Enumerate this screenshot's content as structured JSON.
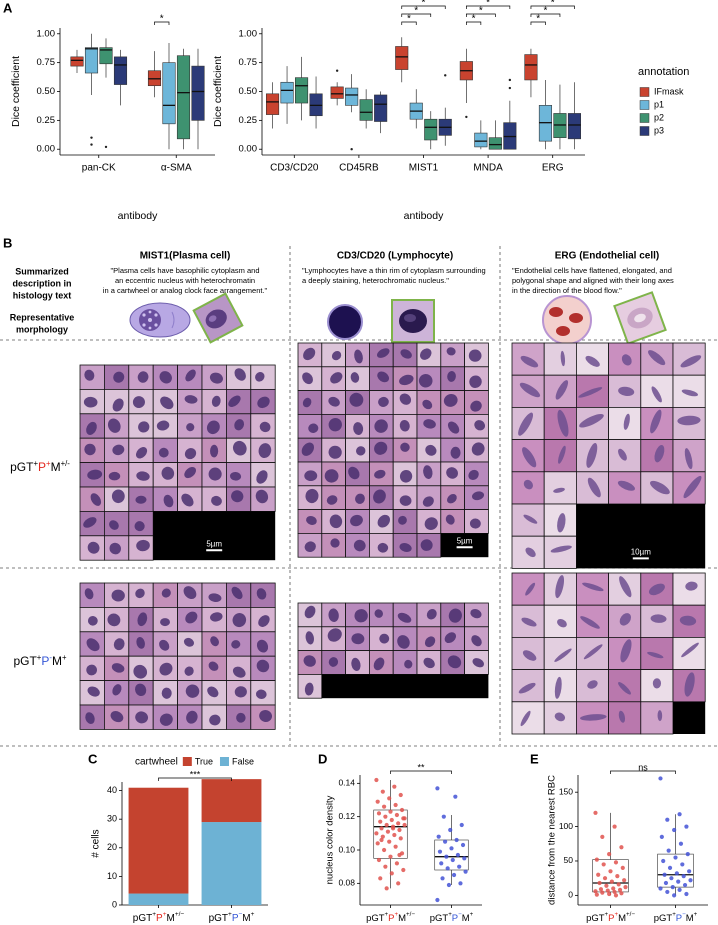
{
  "panel_labels": [
    "A",
    "B",
    "C",
    "D",
    "E"
  ],
  "chart_data": [
    {
      "type": "box",
      "y_label": "Dice coefficient",
      "x_label": "antibody",
      "categories": [
        "pan-CK",
        "α-SMA"
      ],
      "ylim": [
        -0.05,
        1.05
      ],
      "yticks": [
        {
          "value": 0,
          "label": "0.00"
        },
        0.25,
        {
          "value": 0.5,
          "label": "0.50"
        },
        0.75,
        {
          "value": 1,
          "label": "1.00"
        }
      ],
      "series": [
        {
          "name": "IFmask",
          "color": "#c9432f",
          "values": [
            {
              "lo": 0.66,
              "q1": 0.72,
              "med": 0.77,
              "q3": 0.8,
              "hi": 0.86
            },
            {
              "lo": 0.45,
              "q1": 0.55,
              "med": 0.61,
              "q3": 0.68,
              "hi": 0.85
            }
          ]
        },
        {
          "name": "p1",
          "color": "#6db6d9",
          "values": [
            {
              "lo": 0.47,
              "q1": 0.66,
              "med": 0.87,
              "q3": 0.88,
              "hi": 1,
              "out": [
                0.1,
                0.04
              ]
            },
            {
              "lo": 0,
              "q1": 0.22,
              "med": 0.38,
              "q3": 0.75,
              "hi": 0.92
            }
          ]
        },
        {
          "name": "p2",
          "color": "#3e9270",
          "values": [
            {
              "lo": 0.62,
              "q1": 0.74,
              "med": 0.86,
              "q3": 0.88,
              "hi": 0.96,
              "out": [
                0.02
              ]
            },
            {
              "lo": 0,
              "q1": 0.09,
              "med": 0.49,
              "q3": 0.81,
              "hi": 0.87
            }
          ]
        },
        {
          "name": "p3",
          "color": "#2b3a78",
          "values": [
            {
              "lo": 0.38,
              "q1": 0.56,
              "med": 0.73,
              "q3": 0.8,
              "hi": 0.86
            },
            {
              "lo": 0,
              "q1": 0.25,
              "med": 0.5,
              "q3": 0.72,
              "hi": 0.87
            }
          ]
        }
      ],
      "comparisons": [
        {
          "category": "α-SMA",
          "groups": [
            "IFmask",
            "p1"
          ],
          "label": "*"
        }
      ]
    },
    {
      "type": "box",
      "y_label": "Dice coefficient",
      "x_label": "antibody",
      "legend_title": "annotation",
      "categories": [
        "CD3/CD20",
        "CD45RB",
        "MIST1",
        "MNDA",
        "ERG"
      ],
      "ylim": [
        -0.05,
        1.05
      ],
      "yticks": [
        {
          "value": 0,
          "label": "0.00"
        },
        0.25,
        {
          "value": 0.5,
          "label": "0.50"
        },
        0.75,
        {
          "value": 1,
          "label": "1.00"
        }
      ],
      "series": [
        {
          "name": "IFmask",
          "color": "#c9432f",
          "values": [
            {
              "lo": 0.18,
              "q1": 0.3,
              "med": 0.41,
              "q3": 0.48,
              "hi": 0.58
            },
            {
              "lo": 0.38,
              "q1": 0.44,
              "med": 0.48,
              "q3": 0.54,
              "hi": 0.58,
              "out": [
                0.68
              ]
            },
            {
              "lo": 0.58,
              "q1": 0.69,
              "med": 0.8,
              "q3": 0.89,
              "hi": 0.97
            },
            {
              "lo": 0.4,
              "q1": 0.6,
              "med": 0.68,
              "q3": 0.76,
              "hi": 0.87,
              "out": [
                0.28
              ]
            },
            {
              "lo": 0.45,
              "q1": 0.6,
              "med": 0.73,
              "q3": 0.82,
              "hi": 0.87
            }
          ]
        },
        {
          "name": "p1",
          "color": "#6db6d9",
          "values": [
            {
              "lo": 0.22,
              "q1": 0.4,
              "med": 0.51,
              "q3": 0.58,
              "hi": 0.72
            },
            {
              "lo": 0.32,
              "q1": 0.38,
              "med": 0.47,
              "q3": 0.53,
              "hi": 0.65,
              "out": [
                0
              ]
            },
            {
              "lo": 0.18,
              "q1": 0.26,
              "med": 0.33,
              "q3": 0.4,
              "hi": 0.52
            },
            {
              "lo": 0,
              "q1": 0.02,
              "med": 0.07,
              "q3": 0.14,
              "hi": 0.25
            },
            {
              "lo": 0,
              "q1": 0.07,
              "med": 0.23,
              "q3": 0.38,
              "hi": 0.6
            }
          ]
        },
        {
          "name": "p2",
          "color": "#3e9270",
          "values": [
            {
              "lo": 0.25,
              "q1": 0.4,
              "med": 0.55,
              "q3": 0.62,
              "hi": 0.8
            },
            {
              "lo": 0.18,
              "q1": 0.25,
              "med": 0.32,
              "q3": 0.43,
              "hi": 0.52
            },
            {
              "lo": 0,
              "q1": 0.08,
              "med": 0.19,
              "q3": 0.26,
              "hi": 0.33
            },
            {
              "lo": 0,
              "q1": 0,
              "med": 0.04,
              "q3": 0.1,
              "hi": 0.25
            },
            {
              "lo": 0,
              "q1": 0.1,
              "med": 0.21,
              "q3": 0.31,
              "hi": 0.56
            }
          ]
        },
        {
          "name": "p3",
          "color": "#2b3a78",
          "values": [
            {
              "lo": 0.18,
              "q1": 0.29,
              "med": 0.38,
              "q3": 0.48,
              "hi": 0.63
            },
            {
              "lo": 0.14,
              "q1": 0.24,
              "med": 0.39,
              "q3": 0.47,
              "hi": 0.5
            },
            {
              "lo": 0.03,
              "q1": 0.12,
              "med": 0.19,
              "q3": 0.26,
              "hi": 0.36,
              "out": [
                0.64
              ]
            },
            {
              "lo": 0,
              "q1": 0,
              "med": 0.11,
              "q3": 0.23,
              "hi": 0.42,
              "out": [
                0.53,
                0.6
              ]
            },
            {
              "lo": 0,
              "q1": 0.09,
              "med": 0.21,
              "q3": 0.31,
              "hi": 0.58
            }
          ]
        }
      ],
      "comparisons": [
        {
          "category": "MIST1",
          "groups": [
            "IFmask",
            "p1"
          ],
          "label": "*"
        },
        {
          "category": "MIST1",
          "groups": [
            "IFmask",
            "p2"
          ],
          "label": "*"
        },
        {
          "category": "MIST1",
          "groups": [
            "IFmask",
            "p3"
          ],
          "label": "*"
        },
        {
          "category": "MNDA",
          "groups": [
            "IFmask",
            "p1"
          ],
          "label": "*"
        },
        {
          "category": "MNDA",
          "groups": [
            "IFmask",
            "p2"
          ],
          "label": "*"
        },
        {
          "category": "MNDA",
          "groups": [
            "IFmask",
            "p3"
          ],
          "label": "*"
        },
        {
          "category": "ERG",
          "groups": [
            "IFmask",
            "p1"
          ],
          "label": "*"
        },
        {
          "category": "ERG",
          "groups": [
            "IFmask",
            "p2"
          ],
          "label": "*"
        },
        {
          "category": "ERG",
          "groups": [
            "IFmask",
            "p3"
          ],
          "label": "*"
        }
      ]
    },
    {
      "type": "bar",
      "stacked": true,
      "legend_title": "cartwheel",
      "y_label": "# cells",
      "categories": [
        [
          "pGT",
          "+",
          "P",
          "+",
          "M",
          "+/−"
        ],
        [
          "pGT",
          "+",
          "P",
          "−",
          "M",
          "+"
        ]
      ],
      "ylim": [
        0,
        43
      ],
      "yticks": [
        0,
        10,
        20,
        30,
        40
      ],
      "series": [
        {
          "name": "True",
          "color": "#c4432f",
          "values": [
            37,
            15
          ]
        },
        {
          "name": "False",
          "color": "#6db2d4",
          "values": [
            4,
            29
          ]
        }
      ],
      "comparison": "***"
    },
    {
      "type": "box",
      "y_label": "nucleus color density",
      "categories": [
        [
          "pGT",
          "+",
          "P",
          "+",
          "M",
          "+/−"
        ],
        [
          "pGT",
          "+",
          "P",
          "−",
          "M",
          "+"
        ]
      ],
      "ylim": [
        0.067,
        0.145
      ],
      "yticks": [
        0.08,
        {
          "value": 0.1,
          "label": "0.10"
        },
        0.12,
        0.14
      ],
      "series": [
        {
          "color": "#e0524d",
          "box": {
            "lo": 0.077,
            "q1": 0.095,
            "med": 0.114,
            "q3": 0.124,
            "hi": 0.142
          },
          "points": [
            0.142,
            0.138,
            0.135,
            0.133,
            0.131,
            0.129,
            0.127,
            0.126,
            0.124,
            0.123,
            0.122,
            0.121,
            0.12,
            0.119,
            0.118,
            0.117,
            0.116,
            0.115,
            0.115,
            0.114,
            0.113,
            0.112,
            0.111,
            0.11,
            0.109,
            0.108,
            0.107,
            0.105,
            0.104,
            0.102,
            0.1,
            0.098,
            0.096,
            0.094,
            0.092,
            0.09,
            0.088,
            0.086,
            0.083,
            0.08,
            0.077,
            0.119,
            0.113,
            0.106,
            0.097
          ]
        },
        {
          "color": "#4352d6",
          "box": {
            "lo": 0.079,
            "q1": 0.088,
            "med": 0.096,
            "q3": 0.106,
            "hi": 0.121
          },
          "points": [
            0.137,
            0.132,
            0.12,
            0.115,
            0.112,
            0.108,
            0.106,
            0.105,
            0.103,
            0.101,
            0.099,
            0.097,
            0.096,
            0.095,
            0.094,
            0.092,
            0.09,
            0.089,
            0.087,
            0.085,
            0.083,
            0.08,
            0.079,
            0.07
          ]
        }
      ],
      "comparison": "**"
    },
    {
      "type": "box",
      "y_label": "distance from the nearest RBC",
      "categories": [
        [
          "pGT",
          "+",
          "P",
          "+",
          "M",
          "+/−"
        ],
        [
          "pGT",
          "+",
          "P",
          "−",
          "M",
          "+"
        ]
      ],
      "ylim": [
        -14,
        175
      ],
      "yticks": [
        0,
        50,
        100,
        150
      ],
      "series": [
        {
          "color": "#e0524d",
          "box": {
            "lo": 0,
            "q1": 5,
            "med": 18,
            "q3": 52,
            "hi": 120
          },
          "points": [
            120,
            100,
            85,
            70,
            60,
            52,
            48,
            45,
            40,
            35,
            30,
            28,
            25,
            22,
            20,
            18,
            16,
            14,
            12,
            10,
            9,
            8,
            7,
            6,
            5,
            4,
            3,
            2,
            1,
            0
          ]
        },
        {
          "color": "#4352d6",
          "box": {
            "lo": 0,
            "q1": 12,
            "med": 30,
            "q3": 60,
            "hi": 118
          },
          "points": [
            170,
            118,
            110,
            100,
            95,
            85,
            75,
            65,
            60,
            55,
            50,
            45,
            40,
            35,
            32,
            30,
            28,
            25,
            22,
            20,
            18,
            15,
            12,
            10,
            8,
            5,
            2,
            0
          ]
        }
      ],
      "comparison": "ns"
    }
  ],
  "panel_b": {
    "row_headers": [
      [
        "Summarized",
        "description in",
        "histology text"
      ],
      [
        "Representative",
        "morphology"
      ]
    ],
    "columns": [
      {
        "title": "MIST1(Plasma cell)",
        "description": [
          "\"Plasma cells have basophilic cytoplasm and",
          "an eccentric nucleus with heterochromatin",
          "in a cartwheel or analog clock face arrangement.\""
        ],
        "scale_bar": "5µm"
      },
      {
        "title": "CD3/CD20 (Lymphocyte)",
        "description": [
          "\"Lymphocytes have a thin rim of cytoplasm surrounding",
          "a deeply staining, heterochromatic nucleus.\""
        ],
        "scale_bar": "5µm"
      },
      {
        "title": "ERG (Endothelial cell)",
        "description": [
          "\"Endothelial cells have flattened, elongated, and",
          "polygonal shape and aligned with their long axes",
          "in the direction of the blood flow.\""
        ],
        "scale_bar": "10µm"
      }
    ],
    "rows": [
      [
        "pGT",
        "+",
        "P",
        "+",
        "M",
        "+/-"
      ],
      [
        "pGT",
        "+",
        "P",
        "-",
        "M",
        "+"
      ]
    ]
  }
}
